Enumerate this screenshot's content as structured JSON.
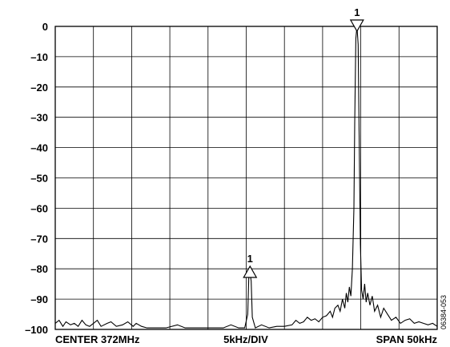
{
  "chart_data": {
    "type": "line",
    "title": "",
    "xlabel": "",
    "ylabel": "",
    "ylim": [
      -100,
      0
    ],
    "yticks": [
      0,
      -10,
      -20,
      -30,
      -40,
      -50,
      -60,
      -70,
      -80,
      -90,
      -100
    ],
    "ytick_labels": [
      "0",
      "–10",
      "–20",
      "–30",
      "–40",
      "–50",
      "–60",
      "–70",
      "–80",
      "–90",
      "–100"
    ],
    "xlim_khz": [
      -25,
      25
    ],
    "grid": true,
    "x_divisions": 10,
    "y_divisions": 10,
    "footer": {
      "left": "CENTER 372MHz",
      "center": "5kHz/DIV",
      "right": "SPAN 50kHz"
    },
    "markers": [
      {
        "label": "1",
        "x_khz": 14.5,
        "y": 0,
        "direction": "down"
      },
      {
        "label": "1",
        "x_khz": 0.5,
        "y": -81,
        "direction": "up"
      }
    ],
    "series": [
      {
        "x_khz": [
          -25,
          -24.5,
          -24,
          -23.6,
          -23,
          -22.5,
          -22,
          -21.5,
          -21,
          -20.5,
          -20,
          -19.5,
          -19,
          -18.2,
          -17.7,
          -17,
          -16.2,
          -15.5,
          -14.8,
          -14.4,
          -13.7,
          -13,
          -12,
          -10.5,
          -9,
          -8,
          -6.5,
          -5.2,
          -4,
          -3,
          -2,
          -1,
          -0.2,
          0.2,
          0.35,
          0.5,
          0.65,
          0.8,
          1.2,
          2,
          3,
          4,
          5,
          6,
          6.5,
          7,
          7.5,
          8,
          8.5,
          9,
          9.5,
          10,
          10.5,
          11,
          11.3,
          11.6,
          12,
          12.3,
          12.6,
          12.9,
          13.1,
          13.3,
          13.5,
          13.7,
          13.9,
          14.1,
          14.2,
          14.35,
          14.5,
          14.65,
          14.8,
          14.95,
          15.1,
          15.3,
          15.5,
          15.7,
          15.9,
          16.2,
          16.5,
          16.8,
          17.2,
          17.6,
          18,
          18.5,
          19,
          19.6,
          20.2,
          20.8,
          21.4,
          22,
          22.6,
          23.2,
          23.8,
          24.4,
          25
        ],
        "y": [
          -98,
          -97,
          -99,
          -97.5,
          -98.5,
          -98,
          -99,
          -97,
          -98.5,
          -99,
          -98,
          -97,
          -99,
          -98,
          -97.5,
          -99,
          -98.5,
          -97.5,
          -99,
          -98,
          -99,
          -99.5,
          -99.5,
          -99.5,
          -98.5,
          -99.5,
          -99.5,
          -99.5,
          -99.5,
          -99.5,
          -98.5,
          -99.5,
          -99.5,
          -95,
          -82,
          -81.5,
          -84,
          -96,
          -99.5,
          -98.5,
          -99.5,
          -99,
          -99,
          -98.5,
          -97,
          -98,
          -97.5,
          -96,
          -97,
          -96.5,
          -97.5,
          -96,
          -95.5,
          -94,
          -96,
          -93,
          -92,
          -94,
          -90,
          -93,
          -88,
          -91,
          -86,
          -89,
          -80,
          -60,
          -32,
          -4,
          0,
          -6,
          -40,
          -72,
          -87,
          -90,
          -85,
          -91,
          -88,
          -92,
          -89,
          -94,
          -92,
          -96,
          -93,
          -95,
          -97,
          -96,
          -98,
          -97,
          -96.5,
          -98,
          -97.5,
          -98,
          -98.5,
          -98,
          -99
        ]
      }
    ]
  },
  "figure_number": "06384-053"
}
